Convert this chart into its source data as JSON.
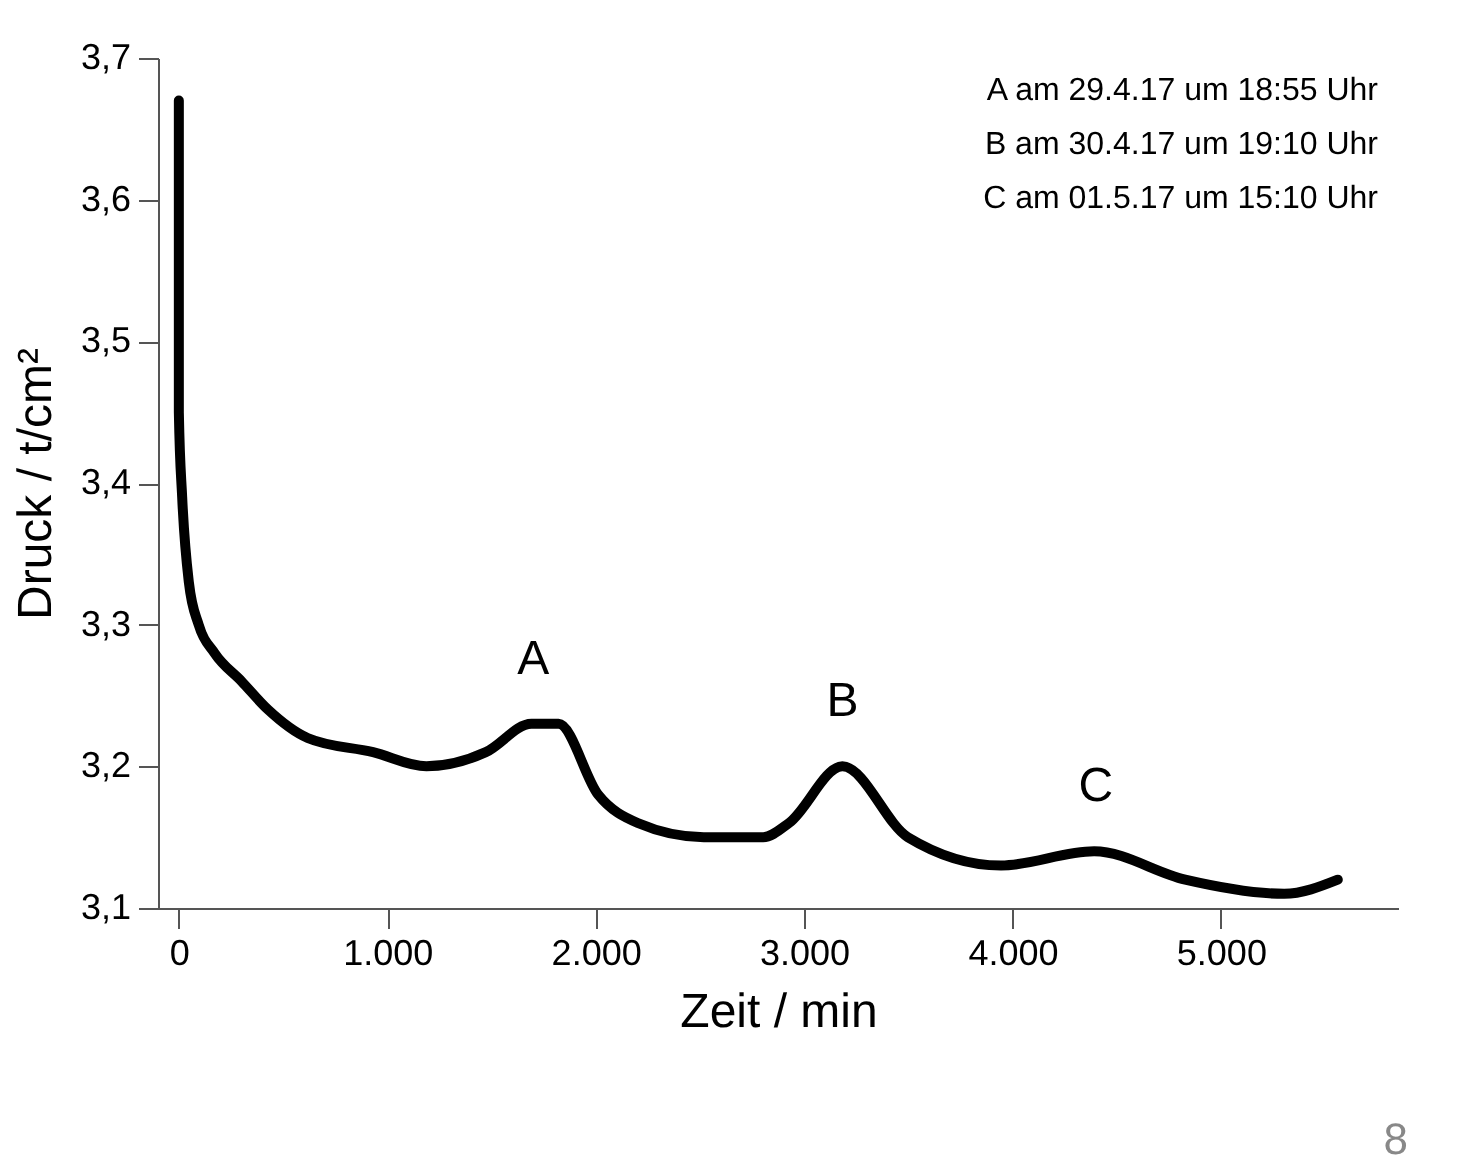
{
  "chart_data": {
    "type": "line",
    "xlabel": "Zeit / min",
    "ylabel": "Druck / t/cm²",
    "x": [
      0,
      0,
      16,
      48,
      95,
      171,
      301,
      428,
      618,
      932,
      1188,
      1473,
      1692,
      1822,
      2012,
      2202,
      2519,
      2804,
      2928,
      3184,
      3498,
      3945,
      4392,
      4829,
      5304,
      5561
    ],
    "series": [
      {
        "color": "#000000",
        "values": [
          3.67,
          3.45,
          3.39,
          3.33,
          3.3,
          3.28,
          3.26,
          3.24,
          3.22,
          3.21,
          3.2,
          3.21,
          3.23,
          3.23,
          3.18,
          3.16,
          3.15,
          3.15,
          3.16,
          3.2,
          3.15,
          3.13,
          3.14,
          3.12,
          3.11,
          3.12
        ]
      }
    ],
    "xlim": [
      -100,
      5850
    ],
    "ylim": [
      3.1,
      3.7
    ],
    "xticks": [
      {
        "value": 0,
        "label": "0"
      },
      {
        "value": 1000,
        "label": "1.000"
      },
      {
        "value": 2000,
        "label": "2.000"
      },
      {
        "value": 3000,
        "label": "3.000"
      },
      {
        "value": 4000,
        "label": "4.000"
      },
      {
        "value": 5000,
        "label": "5.000"
      }
    ],
    "yticks": [
      {
        "value": 3.1,
        "label": "3,1"
      },
      {
        "value": 3.2,
        "label": "3,2"
      },
      {
        "value": 3.3,
        "label": "3,3"
      },
      {
        "value": 3.4,
        "label": "3,4"
      },
      {
        "value": 3.5,
        "label": "3,5"
      },
      {
        "value": 3.6,
        "label": "3,6"
      },
      {
        "value": 3.7,
        "label": "3,7"
      }
    ],
    "annotations": [
      {
        "text": "A",
        "x": 1700,
        "y": 3.23
      },
      {
        "text": "B",
        "x": 3184,
        "y": 3.2
      },
      {
        "text": "C",
        "x": 4400,
        "y": 3.14
      },
      "A am 29.4.17 um 18:55 Uhr",
      "B am 30.4.17 um 19:10 Uhr",
      "C am 01.5.17 um 15:10 Uhr",
      "8"
    ],
    "grid": false,
    "marker": "none",
    "line_style": "solid"
  }
}
